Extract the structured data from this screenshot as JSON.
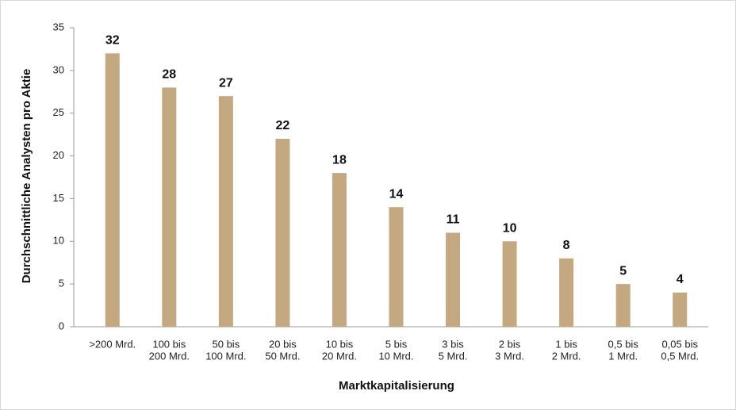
{
  "chart_data": {
    "type": "bar",
    "x_label": "Marktkapitalisierung",
    "y_label": "Durchschnittliche Analysten pro Aktie",
    "categories": [
      [
        ">200 Mrd."
      ],
      [
        "100 bis",
        "200 Mrd."
      ],
      [
        "50 bis",
        "100 Mrd."
      ],
      [
        "20 bis",
        "50 Mrd."
      ],
      [
        "10 bis",
        "20 Mrd."
      ],
      [
        "5 bis",
        "10 Mrd."
      ],
      [
        "3 bis",
        "5 Mrd."
      ],
      [
        "2 bis",
        "3 Mrd."
      ],
      [
        "1 bis",
        "2 Mrd."
      ],
      [
        "0,5 bis",
        "1 Mrd."
      ],
      [
        "0,05 bis",
        "0,5 Mrd."
      ]
    ],
    "values": [
      32,
      28,
      27,
      22,
      18,
      14,
      11,
      10,
      8,
      5,
      4
    ],
    "color": "#c4a880",
    "ylim": [
      0,
      35
    ],
    "yticks": [
      0,
      5,
      10,
      15,
      20,
      25,
      30,
      35
    ]
  }
}
